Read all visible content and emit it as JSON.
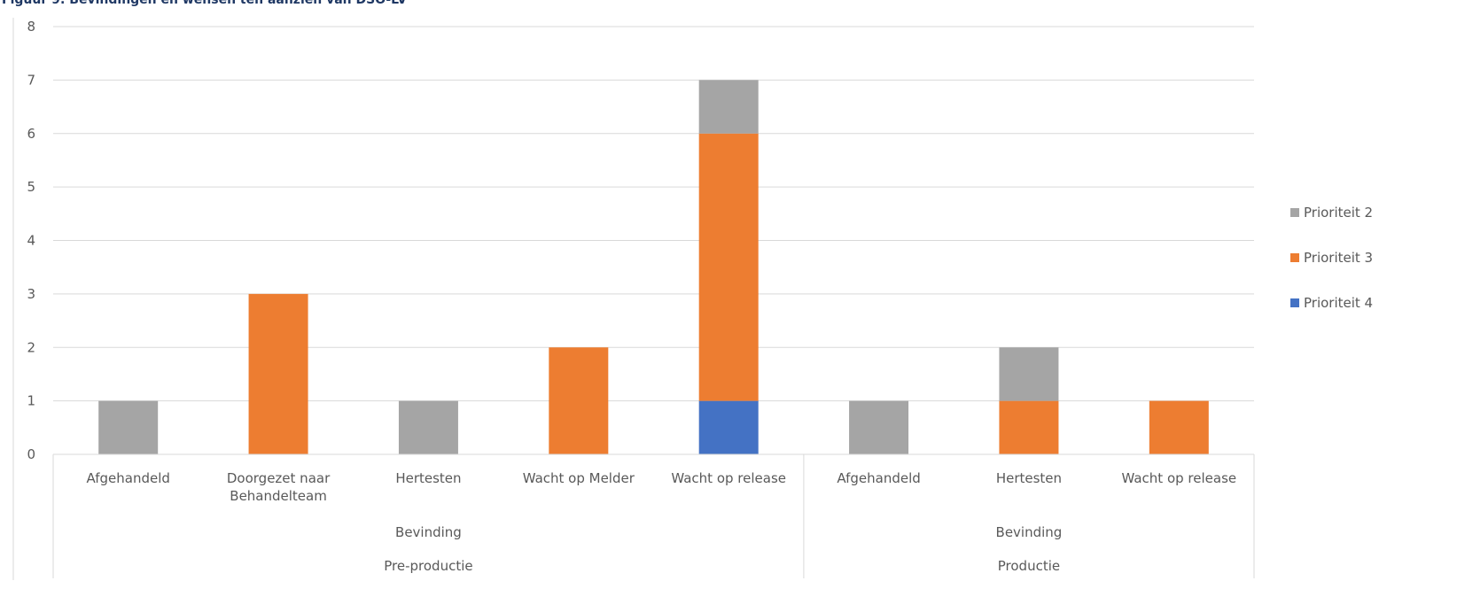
{
  "figure_title": "Figuur 9: Bevindingen en wensen ten aanzien van DSO-LV",
  "chart_data": {
    "type": "bar",
    "stacked": true,
    "title": "",
    "xlabel": "",
    "ylabel": "",
    "ylim": [
      0,
      8
    ],
    "yticks": [
      0,
      1,
      2,
      3,
      4,
      5,
      6,
      7,
      8
    ],
    "grid": true,
    "legend_position": "right",
    "categories": [
      "Afgehandeld",
      "Doorgezet naar Behandelteam",
      "Hertesten",
      "Wacht op Melder",
      "Wacht op release",
      "Afgehandeld",
      "Hertesten",
      "Wacht op release"
    ],
    "category_label_lines": [
      [
        "Afgehandeld"
      ],
      [
        "Doorgezet naar",
        "Behandelteam"
      ],
      [
        "Hertesten"
      ],
      [
        "Wacht op Melder"
      ],
      [
        "Wacht op release"
      ],
      [
        "Afgehandeld"
      ],
      [
        "Hertesten"
      ],
      [
        "Wacht op release"
      ]
    ],
    "groups": [
      {
        "label": "Bevinding",
        "parent": "Pre-productie",
        "start": 0,
        "end": 4
      },
      {
        "label": "Bevinding",
        "parent": "Productie",
        "start": 5,
        "end": 7
      }
    ],
    "top_groups": [
      {
        "label": "Pre-productie",
        "start": 0,
        "end": 4
      },
      {
        "label": "Productie",
        "start": 5,
        "end": 7
      }
    ],
    "series": [
      {
        "name": "Prioriteit 4",
        "color": "#4472c4",
        "values": [
          0,
          0,
          0,
          0,
          1,
          0,
          0,
          0
        ]
      },
      {
        "name": "Prioriteit 3",
        "color": "#ed7d31",
        "values": [
          0,
          3,
          0,
          2,
          5,
          0,
          1,
          1
        ]
      },
      {
        "name": "Prioriteit 2",
        "color": "#a5a5a5",
        "values": [
          1,
          0,
          1,
          0,
          1,
          1,
          1,
          0
        ]
      }
    ],
    "legend_order": [
      "Prioriteit 2",
      "Prioriteit 3",
      "Prioriteit 4"
    ],
    "colors": {
      "gridline": "#d9d9d9",
      "axis_text": "#595959",
      "title": "#1f3864"
    }
  }
}
